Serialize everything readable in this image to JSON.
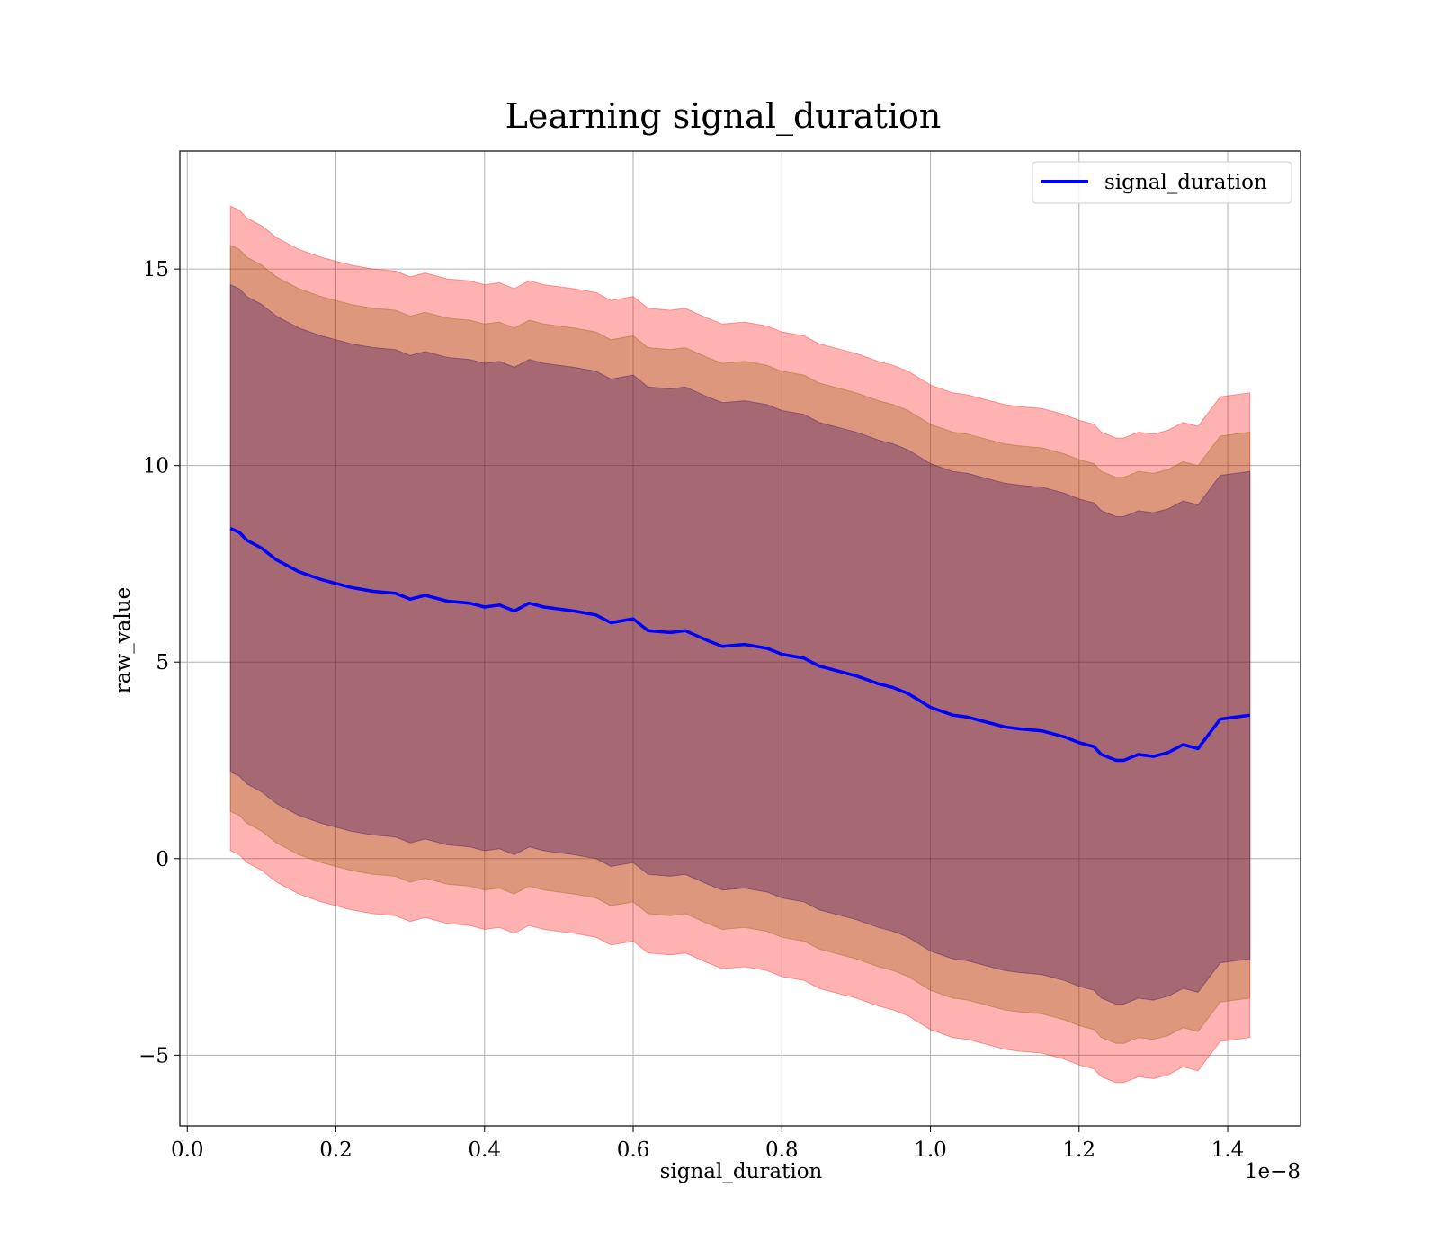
{
  "chart_data": {
    "type": "line",
    "title": "Learning signal_duration",
    "xlabel": "signal_duration",
    "ylabel": "raw_value",
    "x_offset_label": "1e−8",
    "xlim": [
      -0.01,
      1.498
    ],
    "ylim": [
      -6.8,
      18.0
    ],
    "x_ticks": [
      0.0,
      0.2,
      0.4,
      0.6,
      0.8,
      1.0,
      1.2,
      1.4
    ],
    "x_tick_labels": [
      "0.0",
      "0.2",
      "0.4",
      "0.6",
      "0.8",
      "1.0",
      "1.2",
      "1.4"
    ],
    "y_ticks": [
      -5,
      0,
      5,
      10,
      15
    ],
    "y_tick_labels": [
      "−5",
      "0",
      "5",
      "10",
      "15"
    ],
    "grid": true,
    "legend": {
      "position": "upper right",
      "entries": [
        "signal_duration"
      ]
    },
    "x": [
      0.058,
      0.07,
      0.08,
      0.1,
      0.12,
      0.15,
      0.18,
      0.2,
      0.22,
      0.25,
      0.28,
      0.3,
      0.32,
      0.35,
      0.38,
      0.4,
      0.42,
      0.44,
      0.46,
      0.48,
      0.5,
      0.52,
      0.55,
      0.57,
      0.6,
      0.62,
      0.65,
      0.67,
      0.7,
      0.72,
      0.75,
      0.78,
      0.8,
      0.83,
      0.85,
      0.88,
      0.9,
      0.93,
      0.95,
      0.97,
      1.0,
      1.03,
      1.05,
      1.08,
      1.1,
      1.12,
      1.15,
      1.18,
      1.2,
      1.22,
      1.23,
      1.25,
      1.26,
      1.28,
      1.3,
      1.32,
      1.34,
      1.36,
      1.39,
      1.43
    ],
    "series": [
      {
        "name": "signal_duration",
        "color": "#0000ff",
        "y": [
          8.4,
          8.3,
          8.1,
          7.9,
          7.6,
          7.3,
          7.1,
          7.0,
          6.9,
          6.8,
          6.75,
          6.6,
          6.7,
          6.55,
          6.5,
          6.4,
          6.45,
          6.3,
          6.5,
          6.4,
          6.35,
          6.3,
          6.2,
          6.0,
          6.1,
          5.8,
          5.75,
          5.8,
          5.55,
          5.4,
          5.45,
          5.35,
          5.2,
          5.1,
          4.9,
          4.75,
          4.65,
          4.45,
          4.35,
          4.2,
          3.85,
          3.65,
          3.6,
          3.45,
          3.35,
          3.3,
          3.25,
          3.1,
          2.95,
          2.85,
          2.65,
          2.5,
          2.5,
          2.65,
          2.6,
          2.7,
          2.9,
          2.8,
          3.55,
          3.65
        ]
      }
    ],
    "bands": [
      {
        "color": "#ff0000",
        "opacity": 0.3,
        "half_width": 8.2
      },
      {
        "color": "#8a5a00",
        "opacity": 0.3,
        "half_width": 7.2
      },
      {
        "color": "#2a0060",
        "opacity": 0.3,
        "half_width": 6.2
      }
    ]
  }
}
